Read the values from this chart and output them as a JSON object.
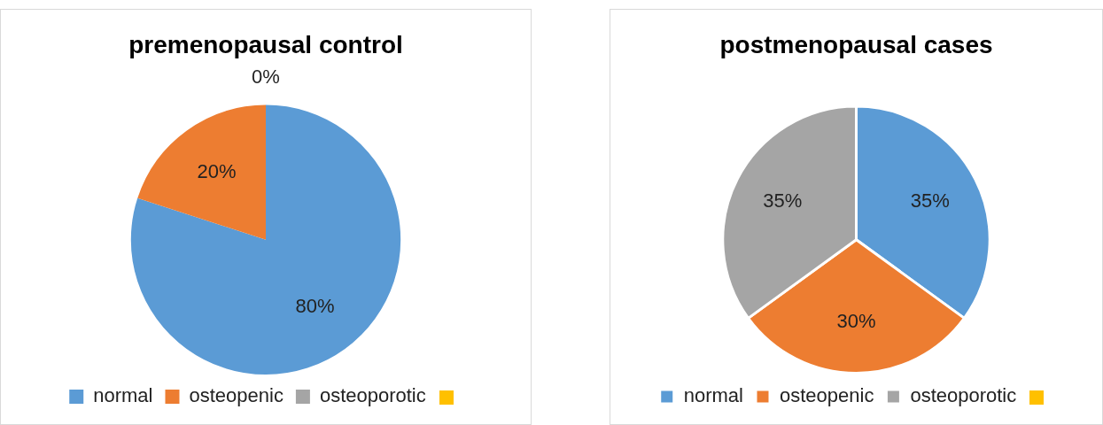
{
  "chart_data": [
    {
      "type": "pie",
      "title": "premenopausal control",
      "categories": [
        "normal",
        "osteopenic",
        "osteoporotic",
        null
      ],
      "values": [
        80,
        20,
        0,
        0
      ],
      "colors": [
        "#5b9bd5",
        "#ed7d31",
        "#a5a5a5",
        "#ffc000"
      ],
      "value_labels": [
        "80%",
        "20%",
        "0%",
        null
      ],
      "legend": "bottom"
    },
    {
      "type": "pie",
      "title": "postmenopausal cases",
      "categories": [
        "normal",
        "osteopenic",
        "osteoporotic",
        null
      ],
      "values": [
        35,
        30,
        35,
        0
      ],
      "colors": [
        "#5b9bd5",
        "#ed7d31",
        "#a5a5a5",
        "#ffc000"
      ],
      "value_labels": [
        "35%",
        "30%",
        "35%",
        null
      ],
      "legend": "bottom"
    }
  ]
}
